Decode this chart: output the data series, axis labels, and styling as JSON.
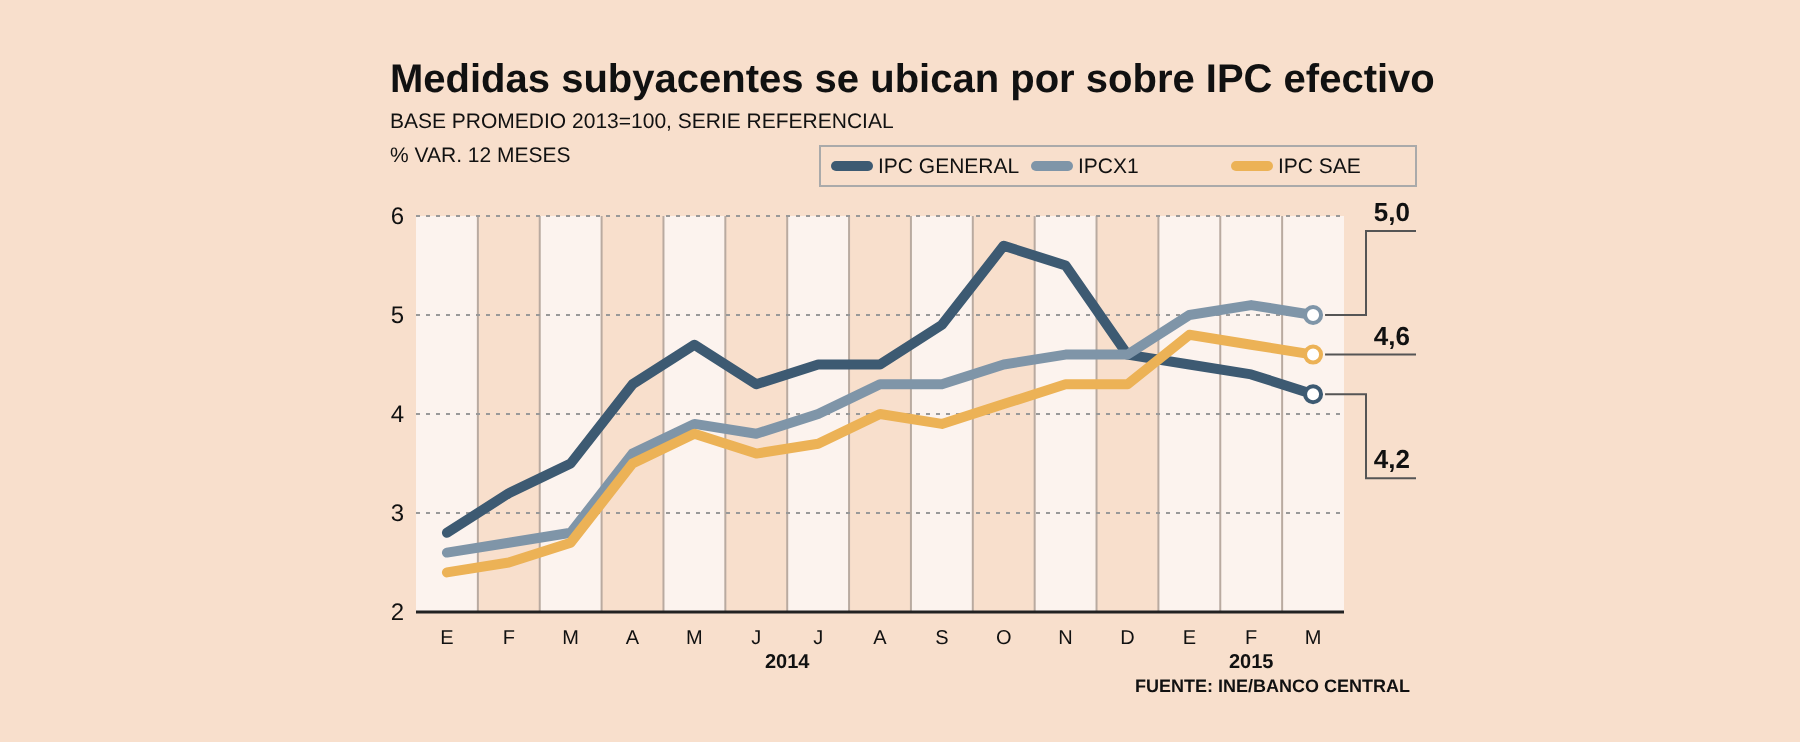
{
  "chart_data": {
    "type": "line",
    "title": "Medidas subyacentes se ubican por sobre IPC efectivo",
    "subtitle": "BASE PROMEDIO 2013=100, SERIE REFERENCIAL",
    "ylabel": "% VAR. 12 MESES",
    "categories": [
      "E",
      "F",
      "M",
      "A",
      "M",
      "J",
      "J",
      "A",
      "S",
      "O",
      "N",
      "D",
      "E",
      "F",
      "M"
    ],
    "series": [
      {
        "name": "IPC GENERAL",
        "color": "#3d5a72",
        "values": [
          2.8,
          3.2,
          3.5,
          4.3,
          4.7,
          4.3,
          4.5,
          4.5,
          4.9,
          5.7,
          5.5,
          4.6,
          4.5,
          4.4,
          4.2
        ],
        "value_labels": [
          null,
          null,
          null,
          null,
          null,
          null,
          null,
          null,
          null,
          null,
          null,
          null,
          null,
          null,
          "4,2"
        ]
      },
      {
        "name": "IPCX1",
        "color": "#7f95a8",
        "values": [
          2.6,
          2.7,
          2.8,
          3.6,
          3.9,
          3.8,
          4.0,
          4.3,
          4.3,
          4.5,
          4.6,
          4.6,
          5.0,
          5.1,
          5.0
        ],
        "value_labels": [
          null,
          null,
          null,
          null,
          null,
          null,
          null,
          null,
          null,
          null,
          null,
          null,
          null,
          null,
          "5,0"
        ]
      },
      {
        "name": "IPC SAE",
        "color": "#ecb256",
        "values": [
          2.4,
          2.5,
          2.7,
          3.5,
          3.8,
          3.6,
          3.7,
          4.0,
          3.9,
          4.1,
          4.3,
          4.3,
          4.8,
          4.7,
          4.6
        ],
        "value_labels": [
          null,
          null,
          null,
          null,
          null,
          null,
          null,
          null,
          null,
          null,
          null,
          null,
          null,
          null,
          "4,6"
        ]
      }
    ],
    "ylim": [
      2,
      6
    ],
    "yticks": [
      2,
      3,
      4,
      5,
      6
    ],
    "grid": "y",
    "legend": "top right",
    "line_style": "solid",
    "annotations": [
      "2014",
      "2015",
      "FUENTE: INE/BANCO CENTRAL"
    ]
  }
}
